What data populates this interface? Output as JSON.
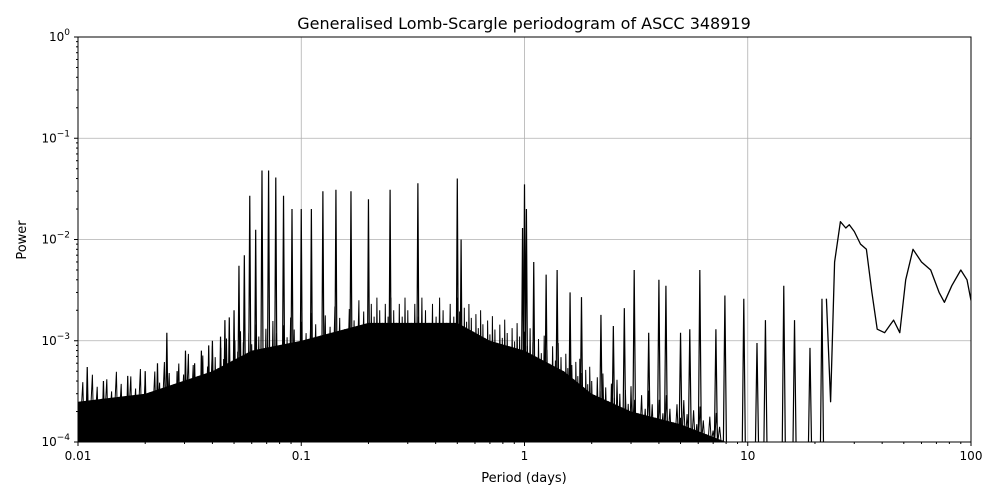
{
  "chart_data": {
    "type": "line",
    "title": "Generalised Lomb-Scargle periodogram of ASCC 348919",
    "xlabel": "Period (days)",
    "ylabel": "Power",
    "xscale": "log",
    "yscale": "log",
    "xlim": [
      0.01,
      100
    ],
    "ylim": [
      0.0001,
      1
    ],
    "grid": true,
    "x_ticks": [
      {
        "value": 0.01,
        "label": "0.01"
      },
      {
        "value": 0.1,
        "label": "0.1"
      },
      {
        "value": 1,
        "label": "1"
      },
      {
        "value": 10,
        "label": "10"
      },
      {
        "value": 100,
        "label": "100"
      }
    ],
    "y_ticks": [
      {
        "value": 0.0001,
        "base": "10",
        "exp": "−4"
      },
      {
        "value": 0.001,
        "base": "10",
        "exp": "−3"
      },
      {
        "value": 0.01,
        "base": "10",
        "exp": "−2"
      },
      {
        "value": 0.1,
        "base": "10",
        "exp": "−1"
      },
      {
        "value": 1,
        "base": "10",
        "exp": "0"
      }
    ],
    "line_color": "#000000",
    "noise_envelope": [
      [
        0.01,
        0.00025
      ],
      [
        0.02,
        0.0003
      ],
      [
        0.04,
        0.0005
      ],
      [
        0.06,
        0.0008
      ],
      [
        0.1,
        0.001
      ],
      [
        0.2,
        0.0015
      ],
      [
        0.3,
        0.0015
      ],
      [
        0.5,
        0.0015
      ],
      [
        0.7,
        0.001
      ],
      [
        1,
        0.0008
      ],
      [
        1.5,
        0.0005
      ],
      [
        2,
        0.0003
      ],
      [
        3,
        0.0002
      ],
      [
        5,
        0.00015
      ],
      [
        8,
        0.0001
      ]
    ],
    "spikes": [
      [
        0.011,
        0.00055
      ],
      [
        0.013,
        0.0004
      ],
      [
        0.0167,
        0.00045
      ],
      [
        0.02,
        0.0005
      ],
      [
        0.0227,
        0.0006
      ],
      [
        0.025,
        0.0012
      ],
      [
        0.0278,
        0.0005
      ],
      [
        0.0303,
        0.0008
      ],
      [
        0.0333,
        0.0006
      ],
      [
        0.0357,
        0.0008
      ],
      [
        0.0385,
        0.0009
      ],
      [
        0.04,
        0.001
      ],
      [
        0.0435,
        0.0011
      ],
      [
        0.0455,
        0.0016
      ],
      [
        0.0476,
        0.0017
      ],
      [
        0.05,
        0.002
      ],
      [
        0.0526,
        0.0055
      ],
      [
        0.0556,
        0.007
      ],
      [
        0.0588,
        0.027
      ],
      [
        0.0625,
        0.0125
      ],
      [
        0.0667,
        0.048
      ],
      [
        0.0714,
        0.048
      ],
      [
        0.0769,
        0.041
      ],
      [
        0.0833,
        0.027
      ],
      [
        0.0909,
        0.02
      ],
      [
        0.1,
        0.02
      ],
      [
        0.111,
        0.02
      ],
      [
        0.125,
        0.03
      ],
      [
        0.143,
        0.031
      ],
      [
        0.167,
        0.03
      ],
      [
        0.2,
        0.025
      ],
      [
        0.25,
        0.031
      ],
      [
        0.333,
        0.036
      ],
      [
        0.5,
        0.04
      ],
      [
        0.52,
        0.01
      ],
      [
        0.98,
        0.013
      ],
      [
        1.0,
        0.035
      ],
      [
        1.02,
        0.02
      ],
      [
        1.1,
        0.006
      ],
      [
        1.25,
        0.0045
      ],
      [
        1.4,
        0.005
      ],
      [
        1.6,
        0.003
      ],
      [
        1.8,
        0.0027
      ],
      [
        2.2,
        0.0018
      ],
      [
        2.5,
        0.0014
      ],
      [
        2.8,
        0.0021
      ],
      [
        3.1,
        0.005
      ],
      [
        3.6,
        0.0012
      ],
      [
        4.0,
        0.004
      ],
      [
        4.3,
        0.0035
      ],
      [
        5.0,
        0.0012
      ],
      [
        5.5,
        0.0013
      ],
      [
        6.1,
        0.005
      ],
      [
        7.2,
        0.0013
      ],
      [
        7.9,
        0.0028
      ],
      [
        9.6,
        0.0026
      ],
      [
        11,
        0.00095
      ],
      [
        12,
        0.0016
      ],
      [
        14.5,
        0.0035
      ],
      [
        16.2,
        0.0016
      ],
      [
        19,
        0.00085
      ],
      [
        21.5,
        0.0026
      ]
    ],
    "tail": [
      [
        22.5,
        0.0026
      ],
      [
        23.5,
        0.00025
      ],
      [
        24.5,
        0.006
      ],
      [
        26,
        0.015
      ],
      [
        27.5,
        0.013
      ],
      [
        28.5,
        0.014
      ],
      [
        30,
        0.012
      ],
      [
        32,
        0.009
      ],
      [
        34,
        0.008
      ],
      [
        36,
        0.003
      ],
      [
        38,
        0.0013
      ],
      [
        41,
        0.0012
      ],
      [
        45,
        0.0016
      ],
      [
        48,
        0.0012
      ],
      [
        51,
        0.004
      ],
      [
        55,
        0.008
      ],
      [
        60,
        0.006
      ],
      [
        66,
        0.005
      ],
      [
        72,
        0.003
      ],
      [
        76,
        0.0024
      ],
      [
        82,
        0.0035
      ],
      [
        90,
        0.005
      ],
      [
        96,
        0.004
      ],
      [
        100,
        0.0025
      ]
    ]
  }
}
